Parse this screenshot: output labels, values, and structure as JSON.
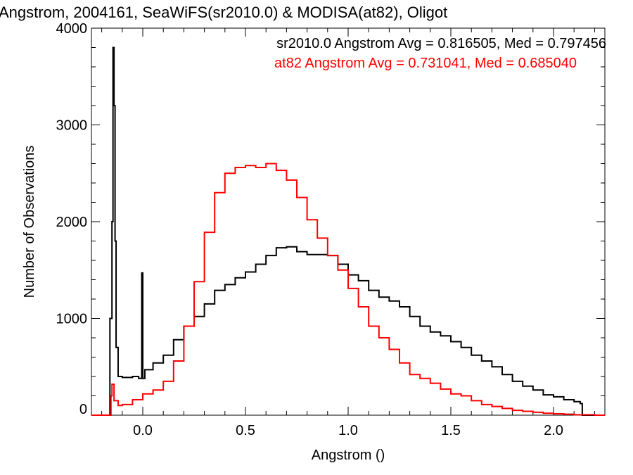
{
  "chart_data": {
    "type": "line",
    "title": "Angstrom, 2004161, SeaWiFS(sr2010.0) & MODISA(at82), Oligot",
    "xlabel": "Angstrom ()",
    "ylabel": "Number of Observations",
    "xlim": [
      -0.25,
      2.25
    ],
    "ylim": [
      0,
      4000
    ],
    "xticks": [
      0.0,
      0.5,
      1.0,
      1.5,
      2.0
    ],
    "xtick_labels": [
      "0.0",
      "0.5",
      "1.0",
      "1.5",
      "2.0"
    ],
    "yticks": [
      0,
      1000,
      2000,
      3000,
      4000
    ],
    "ytick_labels": [
      "0",
      "1000",
      "2000",
      "3000",
      "4000"
    ],
    "step": "histogram",
    "grid": false,
    "annotations": [
      {
        "text": "sr2010.0 Angstrom Avg = 0.816505, Med = 0.797456",
        "color": "#000000"
      },
      {
        "text": "at82 Angstrom Avg = 0.731041, Med = 0.685040",
        "color": "#ff0000"
      }
    ],
    "series": [
      {
        "color": "#000000",
        "x": [
          -0.25,
          -0.17,
          -0.16,
          -0.15,
          -0.145,
          -0.14,
          -0.135,
          -0.13,
          -0.12,
          -0.1,
          -0.05,
          -0.02,
          -0.005,
          0.0,
          0.01,
          0.05,
          0.1,
          0.15,
          0.2,
          0.25,
          0.3,
          0.35,
          0.4,
          0.45,
          0.5,
          0.55,
          0.6,
          0.65,
          0.7,
          0.75,
          0.8,
          0.85,
          0.9,
          0.95,
          1.0,
          1.05,
          1.1,
          1.15,
          1.2,
          1.25,
          1.3,
          1.35,
          1.4,
          1.45,
          1.5,
          1.55,
          1.6,
          1.65,
          1.7,
          1.75,
          1.8,
          1.85,
          1.9,
          1.95,
          2.0,
          2.05,
          2.1,
          2.13,
          2.14,
          2.25
        ],
        "y": [
          0,
          0,
          1000,
          2000,
          3800,
          3200,
          1800,
          700,
          400,
          390,
          400,
          380,
          1470,
          380,
          470,
          540,
          620,
          780,
          920,
          1020,
          1150,
          1290,
          1350,
          1420,
          1480,
          1560,
          1650,
          1730,
          1740,
          1690,
          1660,
          1660,
          1650,
          1560,
          1450,
          1390,
          1290,
          1220,
          1180,
          1120,
          1020,
          920,
          860,
          820,
          760,
          700,
          620,
          560,
          500,
          420,
          350,
          300,
          260,
          210,
          190,
          160,
          140,
          120,
          0,
          0
        ]
      },
      {
        "color": "#ff0000",
        "x": [
          -0.25,
          -0.16,
          -0.155,
          -0.15,
          -0.14,
          -0.12,
          -0.1,
          -0.05,
          0.0,
          0.05,
          0.1,
          0.15,
          0.2,
          0.25,
          0.3,
          0.35,
          0.4,
          0.45,
          0.5,
          0.55,
          0.6,
          0.65,
          0.7,
          0.75,
          0.8,
          0.85,
          0.9,
          0.95,
          1.0,
          1.05,
          1.1,
          1.15,
          1.2,
          1.25,
          1.3,
          1.35,
          1.4,
          1.45,
          1.5,
          1.55,
          1.6,
          1.65,
          1.7,
          1.75,
          1.8,
          1.85,
          1.9,
          1.95,
          2.0,
          2.05,
          2.1,
          2.15,
          2.2,
          2.25
        ],
        "y": [
          0,
          0,
          200,
          320,
          150,
          100,
          110,
          160,
          220,
          260,
          350,
          560,
          920,
          1380,
          1890,
          2300,
          2500,
          2560,
          2580,
          2560,
          2600,
          2530,
          2430,
          2250,
          2020,
          1830,
          1650,
          1500,
          1310,
          1120,
          920,
          800,
          680,
          540,
          420,
          380,
          330,
          270,
          220,
          200,
          150,
          110,
          90,
          70,
          50,
          40,
          30,
          20,
          15,
          10,
          5,
          5,
          0,
          0
        ]
      }
    ]
  }
}
